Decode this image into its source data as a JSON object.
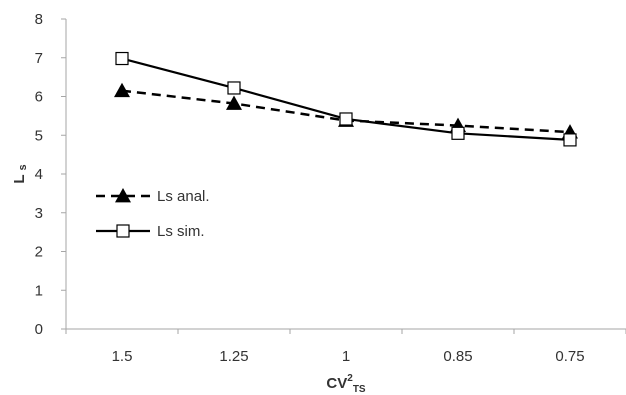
{
  "chart_data": {
    "type": "line",
    "categories": [
      "1.5",
      "1.25",
      "1",
      "0.85",
      "0.75"
    ],
    "series": [
      {
        "name": "Ls anal.",
        "values": [
          6.15,
          5.82,
          5.38,
          5.25,
          5.08
        ],
        "line_style": "dashed",
        "marker": "filled-triangle",
        "color": "#000000"
      },
      {
        "name": "Ls sim.",
        "values": [
          6.98,
          6.22,
          5.42,
          5.05,
          4.88
        ],
        "line_style": "solid",
        "marker": "open-square",
        "color": "#000000"
      }
    ],
    "xlabel": {
      "main": "CV",
      "sup": "2",
      "sub": "TS"
    },
    "ylabel": {
      "main": "L",
      "sub": "s"
    },
    "ylim": [
      0,
      8
    ],
    "yticks": [
      "0",
      "1",
      "2",
      "3",
      "4",
      "5",
      "6",
      "7",
      "8"
    ],
    "grid": false,
    "legend_position": "left-middle"
  }
}
